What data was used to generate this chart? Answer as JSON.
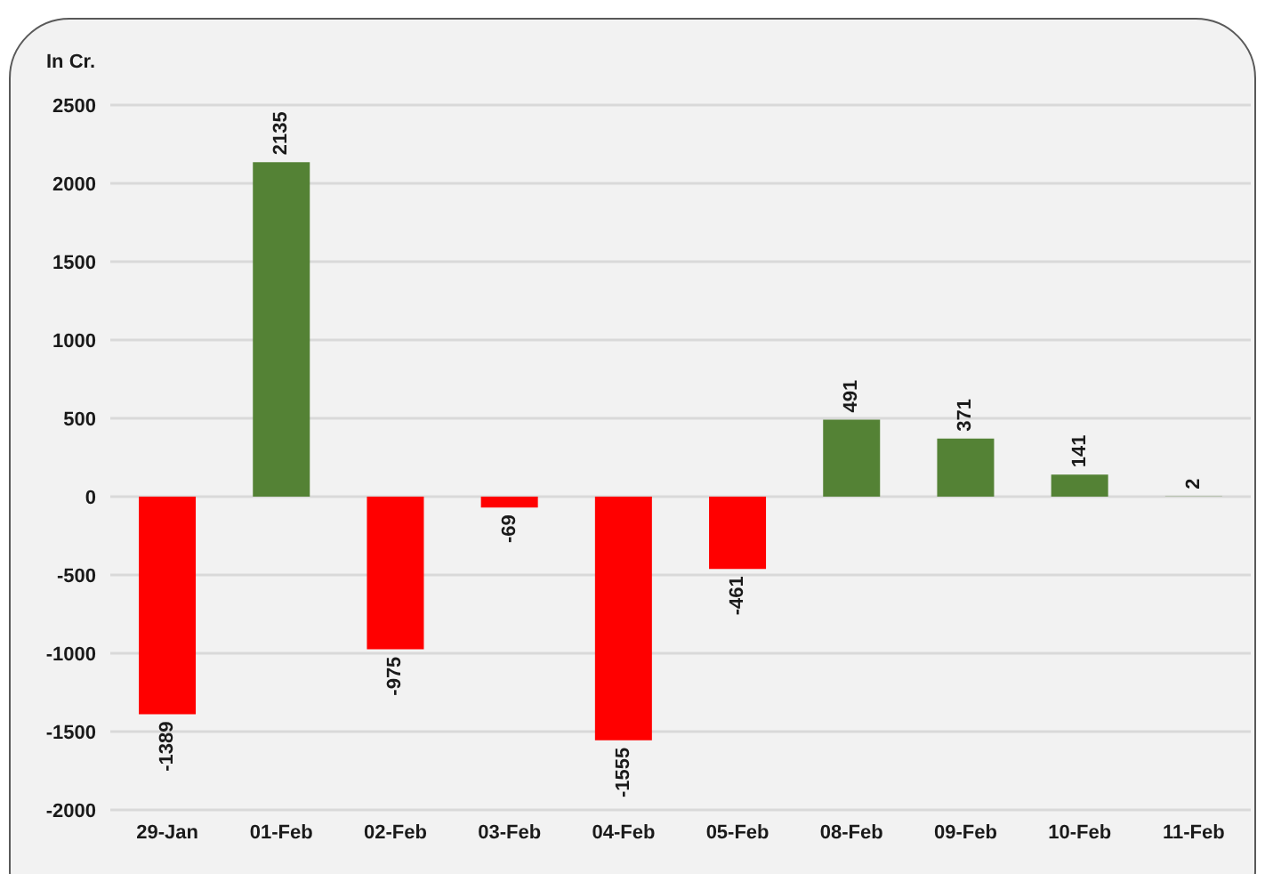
{
  "chart_data": {
    "type": "bar",
    "ylabel": "In Cr.",
    "categories": [
      "29-Jan",
      "01-Feb",
      "02-Feb",
      "03-Feb",
      "04-Feb",
      "05-Feb",
      "08-Feb",
      "09-Feb",
      "10-Feb",
      "11-Feb"
    ],
    "values": [
      -1389,
      2135,
      -975,
      -69,
      -1555,
      -461,
      491,
      371,
      141,
      2
    ],
    "colors": [
      "#ff0000",
      "#548235",
      "#ff0000",
      "#ff0000",
      "#ff0000",
      "#ff0000",
      "#548235",
      "#548235",
      "#548235",
      "#548235"
    ],
    "ylim": [
      -2000,
      2500
    ],
    "yticks": [
      -2000,
      -1500,
      -1000,
      -500,
      0,
      500,
      1000,
      1500,
      2000,
      2500
    ],
    "grid": "y",
    "data_labels": true
  }
}
